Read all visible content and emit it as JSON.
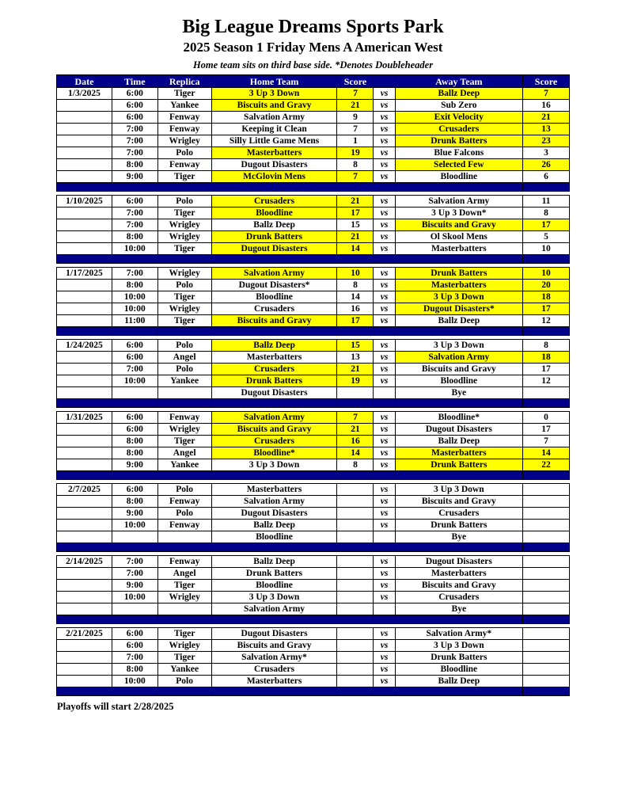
{
  "page": {
    "title": "Big League Dreams Sports Park",
    "subtitle": "2025 Season 1 Friday Mens A American West",
    "note": "Home team sits on third base side.  *Denotes Doubleheader",
    "footer": "Playoffs will start 2/28/2025"
  },
  "colors": {
    "navy": "#00008B",
    "yellow": "#FFFF00",
    "header_text": "#FFFFFF",
    "border": "#000000"
  },
  "table": {
    "headers": [
      "Date",
      "Time",
      "Replica",
      "Home Team",
      "Score",
      "",
      "Away Team",
      "Score"
    ],
    "vs_label": "vs",
    "weeks": [
      {
        "date": "1/3/2025",
        "games": [
          {
            "time": "6:00",
            "replica": "Tiger",
            "home": "3 Up 3 Down",
            "home_score": "7",
            "away": "Ballz Deep",
            "away_score": "7",
            "home_hl": true,
            "away_hl": true
          },
          {
            "time": "6:00",
            "replica": "Yankee",
            "home": "Biscuits and Gravy",
            "home_score": "21",
            "away": "Sub Zero",
            "away_score": "16",
            "home_hl": true,
            "away_hl": false
          },
          {
            "time": "6:00",
            "replica": "Fenway",
            "home": "Salvation Army",
            "home_score": "9",
            "away": "Exit Velocity",
            "away_score": "21",
            "home_hl": false,
            "away_hl": true
          },
          {
            "time": "7:00",
            "replica": "Fenway",
            "home": "Keeping it Clean",
            "home_score": "7",
            "away": "Crusaders",
            "away_score": "13",
            "home_hl": false,
            "away_hl": true
          },
          {
            "time": "7:00",
            "replica": "Wrigley",
            "home": "Silly Little Game Mens",
            "home_score": "1",
            "away": "Drunk Batters",
            "away_score": "23",
            "home_hl": false,
            "away_hl": true
          },
          {
            "time": "7:00",
            "replica": "Polo",
            "home": "Masterbatters",
            "home_score": "19",
            "away": "Blue Falcons",
            "away_score": "3",
            "home_hl": true,
            "away_hl": false
          },
          {
            "time": "8:00",
            "replica": "Fenway",
            "home": "Dugout Disasters",
            "home_score": "8",
            "away": "Selected Few",
            "away_score": "26",
            "home_hl": false,
            "away_hl": true
          },
          {
            "time": "9:00",
            "replica": "Tiger",
            "home": "McGlovin Mens",
            "home_score": "7",
            "away": "Bloodline",
            "away_score": "6",
            "home_hl": true,
            "away_hl": false
          }
        ]
      },
      {
        "date": "1/10/2025",
        "games": [
          {
            "time": "6:00",
            "replica": "Polo",
            "home": "Crusaders",
            "home_score": "21",
            "away": "Salvation Army",
            "away_score": "11",
            "home_hl": true,
            "away_hl": false
          },
          {
            "time": "7:00",
            "replica": "Tiger",
            "home": "Bloodline",
            "home_score": "17",
            "away": "3 Up 3 Down*",
            "away_score": "8",
            "home_hl": true,
            "away_hl": false
          },
          {
            "time": "7:00",
            "replica": "Wrigley",
            "home": "Ballz Deep",
            "home_score": "15",
            "away": "Biscuits and Gravy",
            "away_score": "17",
            "home_hl": false,
            "away_hl": true
          },
          {
            "time": "8:00",
            "replica": "Wrigley",
            "home": "Drunk Batters",
            "home_score": "21",
            "away": "Ol Skool Mens",
            "away_score": "5",
            "home_hl": true,
            "away_hl": false
          },
          {
            "time": "10:00",
            "replica": "Tiger",
            "home": "Dugout Disasters",
            "home_score": "14",
            "away": "Masterbatters",
            "away_score": "10",
            "home_hl": true,
            "away_hl": false
          }
        ]
      },
      {
        "date": "1/17/2025",
        "games": [
          {
            "time": "7:00",
            "replica": "Wrigley",
            "home": "Salvation Army",
            "home_score": "10",
            "away": "Drunk Batters",
            "away_score": "10",
            "home_hl": true,
            "away_hl": true
          },
          {
            "time": "8:00",
            "replica": "Polo",
            "home": "Dugout Disasters*",
            "home_score": "8",
            "away": "Masterbatters",
            "away_score": "20",
            "home_hl": false,
            "away_hl": true
          },
          {
            "time": "10:00",
            "replica": "Tiger",
            "home": "Bloodline",
            "home_score": "14",
            "away": "3 Up 3 Down",
            "away_score": "18",
            "home_hl": false,
            "away_hl": true
          },
          {
            "time": "10:00",
            "replica": "Wrigley",
            "home": "Crusaders",
            "home_score": "16",
            "away": "Dugout Disasters*",
            "away_score": "17",
            "home_hl": false,
            "away_hl": true
          },
          {
            "time": "11:00",
            "replica": "Tiger",
            "home": "Biscuits and Gravy",
            "home_score": "17",
            "away": "Ballz Deep",
            "away_score": "12",
            "home_hl": true,
            "away_hl": false
          }
        ]
      },
      {
        "date": "1/24/2025",
        "games": [
          {
            "time": "6:00",
            "replica": "Polo",
            "home": "Ballz Deep",
            "home_score": "15",
            "away": "3 Up 3 Down",
            "away_score": "8",
            "home_hl": true,
            "away_hl": false
          },
          {
            "time": "6:00",
            "replica": "Angel",
            "home": "Masterbatters",
            "home_score": "13",
            "away": "Salvation Army",
            "away_score": "18",
            "home_hl": false,
            "away_hl": true
          },
          {
            "time": "7:00",
            "replica": "Polo",
            "home": "Crusaders",
            "home_score": "21",
            "away": "Biscuits and Gravy",
            "away_score": "17",
            "home_hl": true,
            "away_hl": false
          },
          {
            "time": "10:00",
            "replica": "Yankee",
            "home": "Drunk Batters",
            "home_score": "19",
            "away": "Bloodline",
            "away_score": "12",
            "home_hl": true,
            "away_hl": false
          },
          {
            "time": "",
            "replica": "",
            "home": "Dugout Disasters",
            "home_score": "",
            "away": "Bye",
            "away_score": "",
            "home_hl": false,
            "away_hl": false,
            "vs": false
          }
        ]
      },
      {
        "date": "1/31/2025",
        "games": [
          {
            "time": "6:00",
            "replica": "Fenway",
            "home": "Salvation Army",
            "home_score": "7",
            "away": "Bloodline*",
            "away_score": "0",
            "home_hl": true,
            "away_hl": false
          },
          {
            "time": "6:00",
            "replica": "Wrigley",
            "home": "Biscuits and Gravy",
            "home_score": "21",
            "away": "Dugout Disasters",
            "away_score": "17",
            "home_hl": true,
            "away_hl": false
          },
          {
            "time": "8:00",
            "replica": "Tiger",
            "home": "Crusaders",
            "home_score": "16",
            "away": "Ballz Deep",
            "away_score": "7",
            "home_hl": true,
            "away_hl": false
          },
          {
            "time": "8:00",
            "replica": "Angel",
            "home": "Bloodline*",
            "home_score": "14",
            "away": "Masterbatters",
            "away_score": "14",
            "home_hl": true,
            "away_hl": true
          },
          {
            "time": "9:00",
            "replica": "Yankee",
            "home": "3 Up 3 Down",
            "home_score": "8",
            "away": "Drunk Batters",
            "away_score": "22",
            "home_hl": false,
            "away_hl": true
          }
        ]
      },
      {
        "date": "2/7/2025",
        "games": [
          {
            "time": "6:00",
            "replica": "Polo",
            "home": "Masterbatters",
            "home_score": "",
            "away": "3 Up 3 Down",
            "away_score": "",
            "home_hl": false,
            "away_hl": false
          },
          {
            "time": "8:00",
            "replica": "Fenway",
            "home": "Salvation Army",
            "home_score": "",
            "away": "Biscuits and Gravy",
            "away_score": "",
            "home_hl": false,
            "away_hl": false
          },
          {
            "time": "9:00",
            "replica": "Polo",
            "home": "Dugout Disasters",
            "home_score": "",
            "away": "Crusaders",
            "away_score": "",
            "home_hl": false,
            "away_hl": false
          },
          {
            "time": "10:00",
            "replica": "Fenway",
            "home": "Ballz Deep",
            "home_score": "",
            "away": "Drunk Batters",
            "away_score": "",
            "home_hl": false,
            "away_hl": false
          },
          {
            "time": "",
            "replica": "",
            "home": "Bloodline",
            "home_score": "",
            "away": "Bye",
            "away_score": "",
            "home_hl": false,
            "away_hl": false,
            "vs": false
          }
        ]
      },
      {
        "date": "2/14/2025",
        "games": [
          {
            "time": "7:00",
            "replica": "Fenway",
            "home": "Ballz Deep",
            "home_score": "",
            "away": "Dugout Disasters",
            "away_score": "",
            "home_hl": false,
            "away_hl": false
          },
          {
            "time": "7:00",
            "replica": "Angel",
            "home": "Drunk Batters",
            "home_score": "",
            "away": "Masterbatters",
            "away_score": "",
            "home_hl": false,
            "away_hl": false
          },
          {
            "time": "9:00",
            "replica": "Tiger",
            "home": "Bloodline",
            "home_score": "",
            "away": "Biscuits and Gravy",
            "away_score": "",
            "home_hl": false,
            "away_hl": false
          },
          {
            "time": "10:00",
            "replica": "Wrigley",
            "home": "3 Up 3 Down",
            "home_score": "",
            "away": "Crusaders",
            "away_score": "",
            "home_hl": false,
            "away_hl": false
          },
          {
            "time": "",
            "replica": "",
            "home": "Salvation Army",
            "home_score": "",
            "away": "Bye",
            "away_score": "",
            "home_hl": false,
            "away_hl": false,
            "vs": false
          }
        ]
      },
      {
        "date": "2/21/2025",
        "games": [
          {
            "time": "6:00",
            "replica": "Tiger",
            "home": "Dugout Disasters",
            "home_score": "",
            "away": "Salvation Army*",
            "away_score": "",
            "home_hl": false,
            "away_hl": false
          },
          {
            "time": "6:00",
            "replica": "Wrigley",
            "home": "Biscuits and Gravy",
            "home_score": "",
            "away": "3 Up 3 Down",
            "away_score": "",
            "home_hl": false,
            "away_hl": false
          },
          {
            "time": "7:00",
            "replica": "Tiger",
            "home": "Salvation Army*",
            "home_score": "",
            "away": "Drunk Batters",
            "away_score": "",
            "home_hl": false,
            "away_hl": false
          },
          {
            "time": "8:00",
            "replica": "Yankee",
            "home": "Crusaders",
            "home_score": "",
            "away": "Bloodline",
            "away_score": "",
            "home_hl": false,
            "away_hl": false
          },
          {
            "time": "10:00",
            "replica": "Polo",
            "home": "Masterbatters",
            "home_score": "",
            "away": "Ballz Deep",
            "away_score": "",
            "home_hl": false,
            "away_hl": false
          }
        ]
      }
    ]
  }
}
